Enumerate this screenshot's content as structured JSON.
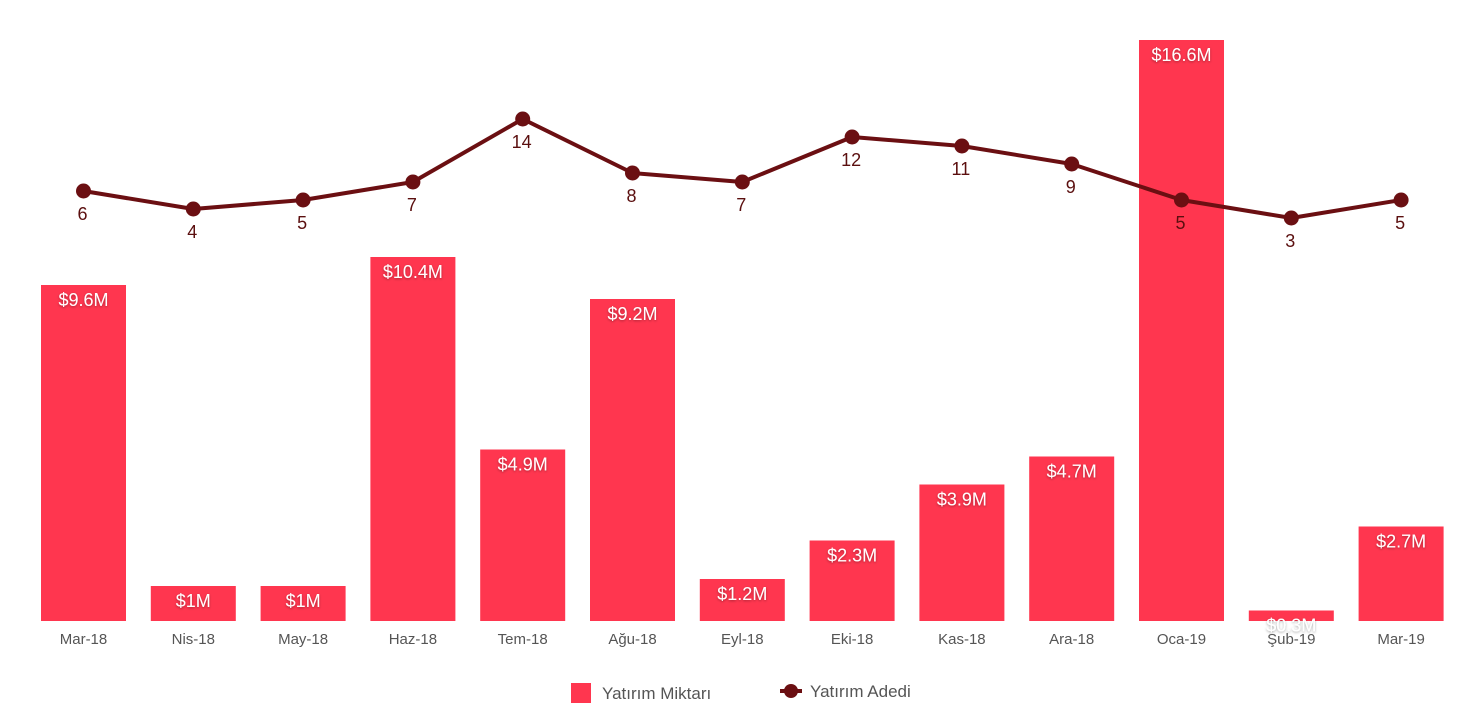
{
  "chart_data": {
    "type": "bar",
    "categories": [
      "Mar-18",
      "Nis-18",
      "May-18",
      "Haz-18",
      "Tem-18",
      "Ağu-18",
      "Eyl-18",
      "Eki-18",
      "Kas-18",
      "Ara-18",
      "Oca-19",
      "Şub-19",
      "Mar-19"
    ],
    "series": [
      {
        "name": "Yatırım Miktarı",
        "type": "bar",
        "values": [
          9.6,
          1,
          1,
          10.4,
          4.9,
          9.2,
          1.2,
          2.3,
          3.9,
          4.7,
          16.6,
          0.3,
          2.7
        ],
        "labels": [
          "$9.6M",
          "$1M",
          "$1M",
          "$10.4M",
          "$4.9M",
          "$9.2M",
          "$1.2M",
          "$2.3M",
          "$3.9M",
          "$4.7M",
          "$16.6M",
          "$0.3M",
          "$2.7M"
        ],
        "color": "#ff364f"
      },
      {
        "name": "Yatırım Adedi",
        "type": "line",
        "values": [
          6,
          4,
          5,
          7,
          14,
          8,
          7,
          12,
          11,
          9,
          5,
          3,
          5
        ],
        "labels": [
          "6",
          "4",
          "5",
          "7",
          "14",
          "8",
          "7",
          "12",
          "11",
          "9",
          "5",
          "3",
          "5"
        ],
        "color": "#6b0f12"
      }
    ],
    "legend": {
      "position": "bottom",
      "items": [
        "Yatırım Miktarı",
        "Yatırım Adedi"
      ]
    },
    "grid": false,
    "title": "",
    "xlabel": "",
    "ylabel": ""
  }
}
